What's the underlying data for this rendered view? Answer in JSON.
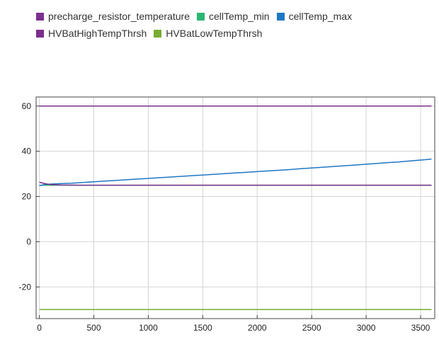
{
  "chart_data": {
    "type": "line",
    "title": "",
    "xlabel": "",
    "ylabel": "",
    "xlim": [
      -30,
      3630
    ],
    "ylim": [
      -34,
      64
    ],
    "grid": true,
    "legend_position": "top-left",
    "x_ticks": [
      0,
      500,
      1000,
      1500,
      2000,
      2500,
      3000,
      3500
    ],
    "y_ticks": [
      -20,
      0,
      20,
      40,
      60
    ],
    "series": [
      {
        "name": "precharge_resistor_temperature",
        "color": "#7b2f8e",
        "x": [
          0,
          25,
          60,
          100,
          200,
          400,
          800,
          1600,
          2400,
          3200,
          3600
        ],
        "y": [
          26.3,
          26.0,
          25.6,
          25.3,
          25.1,
          25.0,
          25.0,
          25.0,
          25.0,
          25.0,
          25.0
        ]
      },
      {
        "name": "cellTemp_min",
        "color": "#2bb673",
        "x": [
          0,
          50,
          100,
          200,
          400,
          800,
          1600,
          2400,
          3200,
          3600
        ],
        "y": [
          25.0,
          25.0,
          25.0,
          25.0,
          25.0,
          25.0,
          25.0,
          25.0,
          25.0,
          25.0
        ]
      },
      {
        "name": "cellTemp_max",
        "color": "#1f77c4",
        "x": [
          0,
          50,
          100,
          200,
          300,
          400,
          500,
          600,
          700,
          800,
          900,
          1000,
          1100,
          1200,
          1300,
          1400,
          1500,
          1600,
          1700,
          1800,
          1900,
          2000,
          2100,
          2200,
          2300,
          2400,
          2500,
          2600,
          2700,
          2800,
          2900,
          3000,
          3100,
          3200,
          3300,
          3400,
          3500,
          3600
        ],
        "y": [
          24.8,
          25.3,
          25.5,
          25.7,
          25.9,
          26.2,
          26.5,
          26.8,
          27.1,
          27.4,
          27.7,
          28.0,
          28.3,
          28.6,
          28.9,
          29.2,
          29.5,
          29.8,
          30.1,
          30.4,
          30.7,
          31.0,
          31.3,
          31.6,
          31.9,
          32.3,
          32.6,
          32.9,
          33.3,
          33.6,
          33.9,
          34.3,
          34.6,
          35.0,
          35.3,
          35.7,
          36.1,
          36.5
        ]
      },
      {
        "name": "HVBatHighTempThrsh",
        "color": "#7b2f8e",
        "x": [
          0,
          3600
        ],
        "y": [
          60,
          60
        ]
      },
      {
        "name": "HVBatLowTempThrsh",
        "color": "#77ac30",
        "x": [
          0,
          3600
        ],
        "y": [
          -30,
          -30
        ]
      }
    ]
  }
}
